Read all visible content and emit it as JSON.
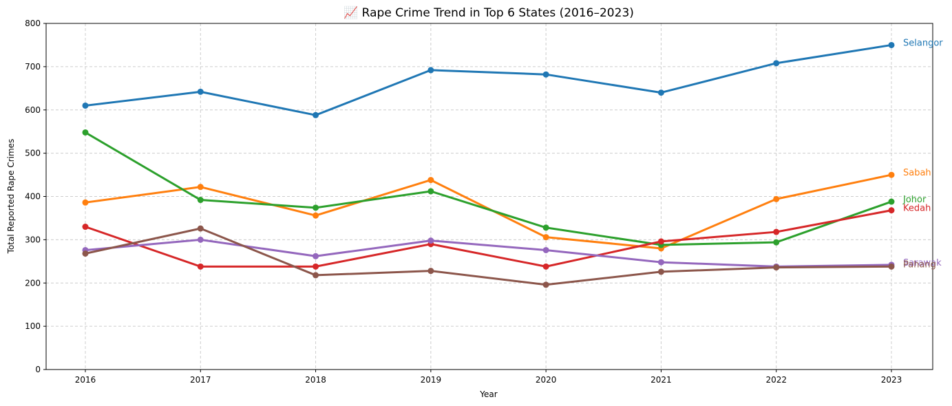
{
  "chart_data": {
    "type": "line",
    "title": "📈 Rape Crime Trend in Top 6 States (2016–2023)",
    "xlabel": "Year",
    "ylabel": "Total Reported Rape Crimes",
    "x": [
      "2016",
      "2017",
      "2018",
      "2019",
      "2020",
      "2021",
      "2022",
      "2023"
    ],
    "ylim": [
      0,
      800
    ],
    "yticks": [
      "0",
      "100",
      "200",
      "300",
      "400",
      "500",
      "600",
      "700",
      "800"
    ],
    "grid": true,
    "legend": "none",
    "series": [
      {
        "name": "Selangor",
        "color": "#1f77b4",
        "values": [
          610,
          642,
          588,
          692,
          682,
          640,
          708,
          750
        ]
      },
      {
        "name": "Sabah",
        "color": "#ff7f0e",
        "values": [
          386,
          422,
          356,
          438,
          306,
          280,
          394,
          450
        ]
      },
      {
        "name": "Johor",
        "color": "#2ca02c",
        "values": [
          548,
          392,
          374,
          412,
          328,
          288,
          294,
          388
        ]
      },
      {
        "name": "Kedah",
        "color": "#d62728",
        "values": [
          330,
          238,
          238,
          290,
          238,
          296,
          318,
          368
        ]
      },
      {
        "name": "Sarawak",
        "color": "#9467bd",
        "values": [
          276,
          300,
          262,
          298,
          276,
          248,
          238,
          242
        ]
      },
      {
        "name": "Pahang",
        "color": "#8c564b",
        "values": [
          268,
          326,
          218,
          228,
          196,
          226,
          236,
          238
        ]
      }
    ]
  }
}
